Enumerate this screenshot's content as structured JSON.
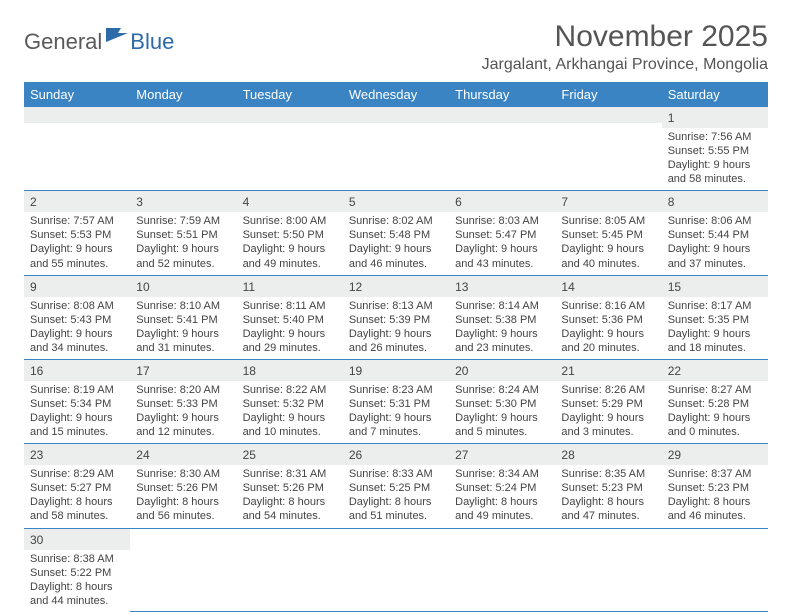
{
  "logo": {
    "general": "General",
    "blue": "Blue"
  },
  "title": "November 2025",
  "location": "Jargalant, Arkhangai Province, Mongolia",
  "header_bg": "#3b84c4",
  "header_text": "#ffffff",
  "daynum_bg": "#eceded",
  "cell_border": "#3b84c4",
  "days_of_week": [
    "Sunday",
    "Monday",
    "Tuesday",
    "Wednesday",
    "Thursday",
    "Friday",
    "Saturday"
  ],
  "weeks": [
    [
      null,
      null,
      null,
      null,
      null,
      null,
      {
        "n": "1",
        "sunrise": "Sunrise: 7:56 AM",
        "sunset": "Sunset: 5:55 PM",
        "dl1": "Daylight: 9 hours",
        "dl2": "and 58 minutes."
      }
    ],
    [
      {
        "n": "2",
        "sunrise": "Sunrise: 7:57 AM",
        "sunset": "Sunset: 5:53 PM",
        "dl1": "Daylight: 9 hours",
        "dl2": "and 55 minutes."
      },
      {
        "n": "3",
        "sunrise": "Sunrise: 7:59 AM",
        "sunset": "Sunset: 5:51 PM",
        "dl1": "Daylight: 9 hours",
        "dl2": "and 52 minutes."
      },
      {
        "n": "4",
        "sunrise": "Sunrise: 8:00 AM",
        "sunset": "Sunset: 5:50 PM",
        "dl1": "Daylight: 9 hours",
        "dl2": "and 49 minutes."
      },
      {
        "n": "5",
        "sunrise": "Sunrise: 8:02 AM",
        "sunset": "Sunset: 5:48 PM",
        "dl1": "Daylight: 9 hours",
        "dl2": "and 46 minutes."
      },
      {
        "n": "6",
        "sunrise": "Sunrise: 8:03 AM",
        "sunset": "Sunset: 5:47 PM",
        "dl1": "Daylight: 9 hours",
        "dl2": "and 43 minutes."
      },
      {
        "n": "7",
        "sunrise": "Sunrise: 8:05 AM",
        "sunset": "Sunset: 5:45 PM",
        "dl1": "Daylight: 9 hours",
        "dl2": "and 40 minutes."
      },
      {
        "n": "8",
        "sunrise": "Sunrise: 8:06 AM",
        "sunset": "Sunset: 5:44 PM",
        "dl1": "Daylight: 9 hours",
        "dl2": "and 37 minutes."
      }
    ],
    [
      {
        "n": "9",
        "sunrise": "Sunrise: 8:08 AM",
        "sunset": "Sunset: 5:43 PM",
        "dl1": "Daylight: 9 hours",
        "dl2": "and 34 minutes."
      },
      {
        "n": "10",
        "sunrise": "Sunrise: 8:10 AM",
        "sunset": "Sunset: 5:41 PM",
        "dl1": "Daylight: 9 hours",
        "dl2": "and 31 minutes."
      },
      {
        "n": "11",
        "sunrise": "Sunrise: 8:11 AM",
        "sunset": "Sunset: 5:40 PM",
        "dl1": "Daylight: 9 hours",
        "dl2": "and 29 minutes."
      },
      {
        "n": "12",
        "sunrise": "Sunrise: 8:13 AM",
        "sunset": "Sunset: 5:39 PM",
        "dl1": "Daylight: 9 hours",
        "dl2": "and 26 minutes."
      },
      {
        "n": "13",
        "sunrise": "Sunrise: 8:14 AM",
        "sunset": "Sunset: 5:38 PM",
        "dl1": "Daylight: 9 hours",
        "dl2": "and 23 minutes."
      },
      {
        "n": "14",
        "sunrise": "Sunrise: 8:16 AM",
        "sunset": "Sunset: 5:36 PM",
        "dl1": "Daylight: 9 hours",
        "dl2": "and 20 minutes."
      },
      {
        "n": "15",
        "sunrise": "Sunrise: 8:17 AM",
        "sunset": "Sunset: 5:35 PM",
        "dl1": "Daylight: 9 hours",
        "dl2": "and 18 minutes."
      }
    ],
    [
      {
        "n": "16",
        "sunrise": "Sunrise: 8:19 AM",
        "sunset": "Sunset: 5:34 PM",
        "dl1": "Daylight: 9 hours",
        "dl2": "and 15 minutes."
      },
      {
        "n": "17",
        "sunrise": "Sunrise: 8:20 AM",
        "sunset": "Sunset: 5:33 PM",
        "dl1": "Daylight: 9 hours",
        "dl2": "and 12 minutes."
      },
      {
        "n": "18",
        "sunrise": "Sunrise: 8:22 AM",
        "sunset": "Sunset: 5:32 PM",
        "dl1": "Daylight: 9 hours",
        "dl2": "and 10 minutes."
      },
      {
        "n": "19",
        "sunrise": "Sunrise: 8:23 AM",
        "sunset": "Sunset: 5:31 PM",
        "dl1": "Daylight: 9 hours",
        "dl2": "and 7 minutes."
      },
      {
        "n": "20",
        "sunrise": "Sunrise: 8:24 AM",
        "sunset": "Sunset: 5:30 PM",
        "dl1": "Daylight: 9 hours",
        "dl2": "and 5 minutes."
      },
      {
        "n": "21",
        "sunrise": "Sunrise: 8:26 AM",
        "sunset": "Sunset: 5:29 PM",
        "dl1": "Daylight: 9 hours",
        "dl2": "and 3 minutes."
      },
      {
        "n": "22",
        "sunrise": "Sunrise: 8:27 AM",
        "sunset": "Sunset: 5:28 PM",
        "dl1": "Daylight: 9 hours",
        "dl2": "and 0 minutes."
      }
    ],
    [
      {
        "n": "23",
        "sunrise": "Sunrise: 8:29 AM",
        "sunset": "Sunset: 5:27 PM",
        "dl1": "Daylight: 8 hours",
        "dl2": "and 58 minutes."
      },
      {
        "n": "24",
        "sunrise": "Sunrise: 8:30 AM",
        "sunset": "Sunset: 5:26 PM",
        "dl1": "Daylight: 8 hours",
        "dl2": "and 56 minutes."
      },
      {
        "n": "25",
        "sunrise": "Sunrise: 8:31 AM",
        "sunset": "Sunset: 5:26 PM",
        "dl1": "Daylight: 8 hours",
        "dl2": "and 54 minutes."
      },
      {
        "n": "26",
        "sunrise": "Sunrise: 8:33 AM",
        "sunset": "Sunset: 5:25 PM",
        "dl1": "Daylight: 8 hours",
        "dl2": "and 51 minutes."
      },
      {
        "n": "27",
        "sunrise": "Sunrise: 8:34 AM",
        "sunset": "Sunset: 5:24 PM",
        "dl1": "Daylight: 8 hours",
        "dl2": "and 49 minutes."
      },
      {
        "n": "28",
        "sunrise": "Sunrise: 8:35 AM",
        "sunset": "Sunset: 5:23 PM",
        "dl1": "Daylight: 8 hours",
        "dl2": "and 47 minutes."
      },
      {
        "n": "29",
        "sunrise": "Sunrise: 8:37 AM",
        "sunset": "Sunset: 5:23 PM",
        "dl1": "Daylight: 8 hours",
        "dl2": "and 46 minutes."
      }
    ],
    [
      {
        "n": "30",
        "sunrise": "Sunrise: 8:38 AM",
        "sunset": "Sunset: 5:22 PM",
        "dl1": "Daylight: 8 hours",
        "dl2": "and 44 minutes."
      },
      null,
      null,
      null,
      null,
      null,
      null
    ]
  ]
}
